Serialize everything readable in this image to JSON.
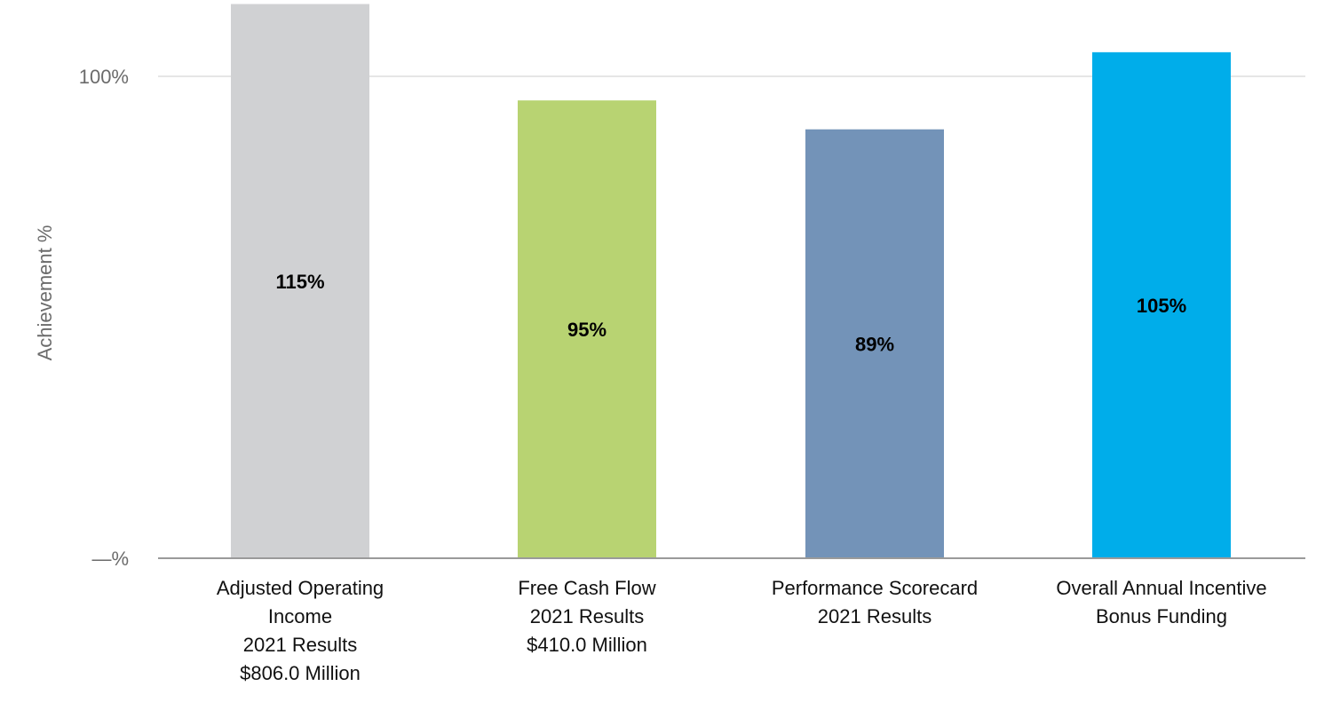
{
  "chart_data": {
    "type": "bar",
    "title": "",
    "xlabel": "",
    "ylabel": "Achievement %",
    "ylim": [
      0,
      120
    ],
    "yticks": [
      {
        "value": 0,
        "label": "—%"
      },
      {
        "value": 100,
        "label": "100%"
      }
    ],
    "grid": true,
    "categories": [
      [
        "Adjusted Operating",
        "Income",
        "2021 Results",
        "$806.0 Million"
      ],
      [
        "Free Cash Flow",
        "2021 Results",
        "$410.0 Million"
      ],
      [
        "Performance Scorecard",
        "2021 Results"
      ],
      [
        "Overall Annual Incentive",
        "Bonus Funding"
      ]
    ],
    "values": [
      115,
      95,
      89,
      105
    ],
    "data_labels": [
      "115%",
      "95%",
      "89%",
      "105%"
    ],
    "colors": [
      "#d0d1d3",
      "#b8d372",
      "#7393b8",
      "#00adea"
    ]
  }
}
